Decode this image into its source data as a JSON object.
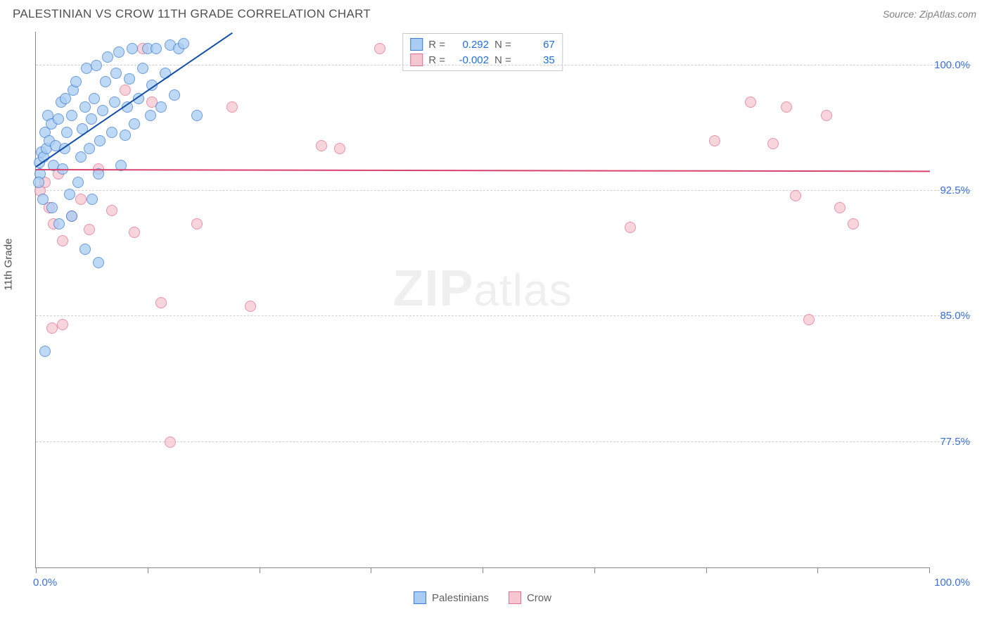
{
  "title": "PALESTINIAN VS CROW 11TH GRADE CORRELATION CHART",
  "source": "Source: ZipAtlas.com",
  "yaxis_title": "11th Grade",
  "watermark": "ZIPatlas",
  "chart": {
    "type": "scatter",
    "xlim": [
      0,
      100
    ],
    "ylim": [
      70,
      102
    ],
    "background_color": "#ffffff",
    "grid_color": "#d0d0d0",
    "axis_color": "#888888",
    "yticks": [
      {
        "v": 100.0,
        "label": "100.0%"
      },
      {
        "v": 92.5,
        "label": "92.5%"
      },
      {
        "v": 85.0,
        "label": "85.0%"
      },
      {
        "v": 77.5,
        "label": "77.5%"
      }
    ],
    "xticks": [
      0,
      12.5,
      25,
      37.5,
      50,
      62.5,
      75,
      87.5,
      100
    ],
    "xlabels": [
      {
        "v": 0,
        "label": "0.0%"
      },
      {
        "v": 100,
        "label": "100.0%"
      }
    ],
    "marker_radius": 8,
    "series": [
      {
        "name": "Palestinians",
        "fill": "#a9cdf2",
        "stroke": "#3b7bd1",
        "trend_color": "#104ea8",
        "r": "0.292",
        "n": "67",
        "trend": {
          "x1": 0,
          "y1": 94.0,
          "x2": 22,
          "y2": 102.0
        },
        "points": [
          [
            0.5,
            93.5
          ],
          [
            0.4,
            94.2
          ],
          [
            0.6,
            94.8
          ],
          [
            0.3,
            93.0
          ],
          [
            0.9,
            94.5
          ],
          [
            1.2,
            95.0
          ],
          [
            1.0,
            96.0
          ],
          [
            1.5,
            95.5
          ],
          [
            1.3,
            97.0
          ],
          [
            1.7,
            96.5
          ],
          [
            2.0,
            94.0
          ],
          [
            2.2,
            95.2
          ],
          [
            2.5,
            96.8
          ],
          [
            2.8,
            97.8
          ],
          [
            3.0,
            93.8
          ],
          [
            3.2,
            95.0
          ],
          [
            3.5,
            96.0
          ],
          [
            3.3,
            98.0
          ],
          [
            4.0,
            97.0
          ],
          [
            4.2,
            98.5
          ],
          [
            4.5,
            99.0
          ],
          [
            4.7,
            93.0
          ],
          [
            5.0,
            94.5
          ],
          [
            5.2,
            96.2
          ],
          [
            5.5,
            97.5
          ],
          [
            5.7,
            99.8
          ],
          [
            6.0,
            95.0
          ],
          [
            6.2,
            96.8
          ],
          [
            6.5,
            98.0
          ],
          [
            6.8,
            100.0
          ],
          [
            7.0,
            93.5
          ],
          [
            7.2,
            95.5
          ],
          [
            7.5,
            97.3
          ],
          [
            7.8,
            99.0
          ],
          [
            8.0,
            100.5
          ],
          [
            8.5,
            96.0
          ],
          [
            8.8,
            97.8
          ],
          [
            9.0,
            99.5
          ],
          [
            9.3,
            100.8
          ],
          [
            9.5,
            94.0
          ],
          [
            10.0,
            95.8
          ],
          [
            10.2,
            97.5
          ],
          [
            10.5,
            99.2
          ],
          [
            10.8,
            101.0
          ],
          [
            11.0,
            96.5
          ],
          [
            11.5,
            98.0
          ],
          [
            12.0,
            99.8
          ],
          [
            12.5,
            101.0
          ],
          [
            12.8,
            97.0
          ],
          [
            13.0,
            98.8
          ],
          [
            13.5,
            101.0
          ],
          [
            14.0,
            97.5
          ],
          [
            14.5,
            99.5
          ],
          [
            15.0,
            101.2
          ],
          [
            15.5,
            98.2
          ],
          [
            16.0,
            101.0
          ],
          [
            16.5,
            101.3
          ],
          [
            18.0,
            97.0
          ],
          [
            1.0,
            82.9
          ],
          [
            0.8,
            92.0
          ],
          [
            1.8,
            91.5
          ],
          [
            2.6,
            90.5
          ],
          [
            4.0,
            91.0
          ],
          [
            5.5,
            89.0
          ],
          [
            7.0,
            88.2
          ],
          [
            3.8,
            92.3
          ],
          [
            6.3,
            92.0
          ]
        ]
      },
      {
        "name": "Crow",
        "fill": "#f6c7d2",
        "stroke": "#e07090",
        "trend_color": "#d8436f",
        "r": "-0.002",
        "n": "35",
        "trend": {
          "x1": 0,
          "y1": 93.8,
          "x2": 100,
          "y2": 93.7
        },
        "points": [
          [
            0.5,
            92.5
          ],
          [
            1.0,
            93.0
          ],
          [
            1.5,
            91.5
          ],
          [
            2.0,
            90.5
          ],
          [
            2.5,
            93.5
          ],
          [
            3.0,
            89.5
          ],
          [
            4.0,
            91.0
          ],
          [
            5.0,
            92.0
          ],
          [
            6.0,
            90.2
          ],
          [
            7.0,
            93.8
          ],
          [
            8.5,
            91.3
          ],
          [
            10.0,
            98.5
          ],
          [
            11.0,
            90.0
          ],
          [
            12.0,
            101.0
          ],
          [
            13.0,
            97.8
          ],
          [
            14.0,
            85.8
          ],
          [
            15.0,
            77.5
          ],
          [
            18.0,
            90.5
          ],
          [
            22.0,
            97.5
          ],
          [
            24.0,
            85.6
          ],
          [
            32.0,
            95.2
          ],
          [
            34.0,
            95.0
          ],
          [
            38.5,
            101.0
          ],
          [
            3.0,
            84.5
          ],
          [
            66.5,
            90.3
          ],
          [
            76.0,
            95.5
          ],
          [
            80.0,
            97.8
          ],
          [
            82.5,
            95.3
          ],
          [
            84.0,
            97.5
          ],
          [
            85.0,
            92.2
          ],
          [
            86.5,
            84.8
          ],
          [
            88.5,
            97.0
          ],
          [
            90.0,
            91.5
          ],
          [
            91.5,
            90.5
          ],
          [
            1.8,
            84.3
          ]
        ]
      }
    ]
  },
  "legend": {
    "series1_label": "Palestinians",
    "series2_label": "Crow"
  },
  "colors": {
    "text_blue": "#3b6fd8",
    "text_gray": "#606060"
  }
}
